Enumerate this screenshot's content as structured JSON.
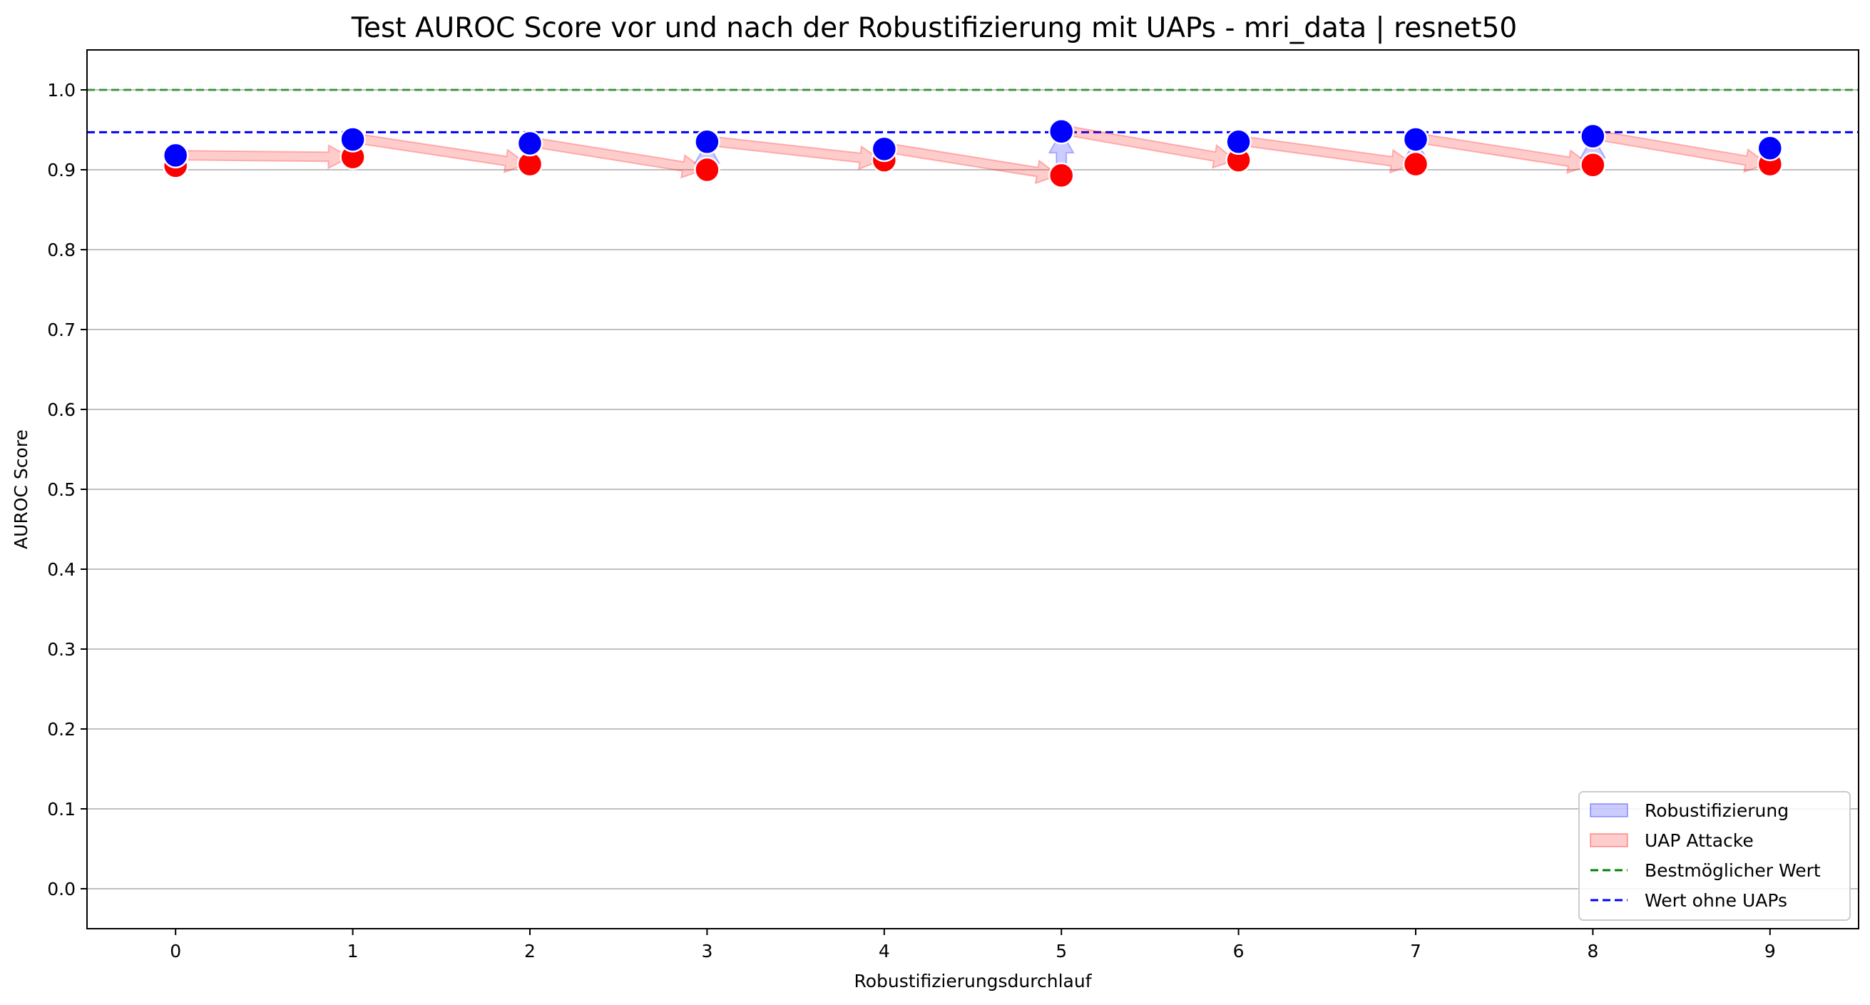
{
  "chart_data": {
    "type": "line",
    "title": "Test AUROC Score vor und nach der Robustifizierung mit UAPs - mri_data | resnet50",
    "xlabel": "Robustifizierungsdurchlauf",
    "ylabel": "AUROC Score",
    "x": [
      0,
      1,
      2,
      3,
      4,
      5,
      6,
      7,
      8,
      9
    ],
    "xticks": [
      "0",
      "1",
      "2",
      "3",
      "4",
      "5",
      "6",
      "7",
      "8",
      "9"
    ],
    "yticks": [
      "0.0",
      "0.1",
      "0.2",
      "0.3",
      "0.4",
      "0.5",
      "0.6",
      "0.7",
      "0.8",
      "0.9",
      "1.0"
    ],
    "xlim": [
      -0.5,
      9.5
    ],
    "ylim": [
      -0.05,
      1.05
    ],
    "grid": "horizontal",
    "series": [
      {
        "key": "after_robustification",
        "color": "#0000ff",
        "marker": "circle",
        "values": [
          0.918,
          0.938,
          0.933,
          0.935,
          0.926,
          0.948,
          0.935,
          0.938,
          0.942,
          0.927
        ]
      },
      {
        "key": "uap_attack",
        "color": "#ff0000",
        "marker": "circle",
        "values": [
          0.905,
          0.916,
          0.907,
          0.9,
          0.912,
          0.893,
          0.912,
          0.907,
          0.906,
          0.907
        ]
      }
    ],
    "arrows": {
      "robustification": {
        "color": "#0000ff",
        "from_series": "uap_attack",
        "to_series": "after_robustification",
        "same_x": true
      },
      "uap_attack": {
        "color": "#ff0000",
        "from_series": "after_robustification",
        "to_series": "uap_attack",
        "to_next_x": true
      }
    },
    "reference_lines": [
      {
        "name": "Bestmöglicher Wert",
        "value": 1.0,
        "color": "#008000",
        "style": "dashed"
      },
      {
        "name": "Wert ohne UAPs",
        "value": 0.947,
        "color": "#0000ff",
        "style": "dashed"
      }
    ],
    "legend": {
      "position": "bottom-right",
      "entries": [
        {
          "label": "Robustifizierung",
          "kind": "patch",
          "color": "#0000ff"
        },
        {
          "label": "UAP Attacke",
          "kind": "patch",
          "color": "#ff0000"
        },
        {
          "label": "Bestmöglicher Wert",
          "kind": "dashed-line",
          "color": "#008000"
        },
        {
          "label": "Wert ohne UAPs",
          "kind": "dashed-line",
          "color": "#0000ff"
        }
      ]
    }
  }
}
